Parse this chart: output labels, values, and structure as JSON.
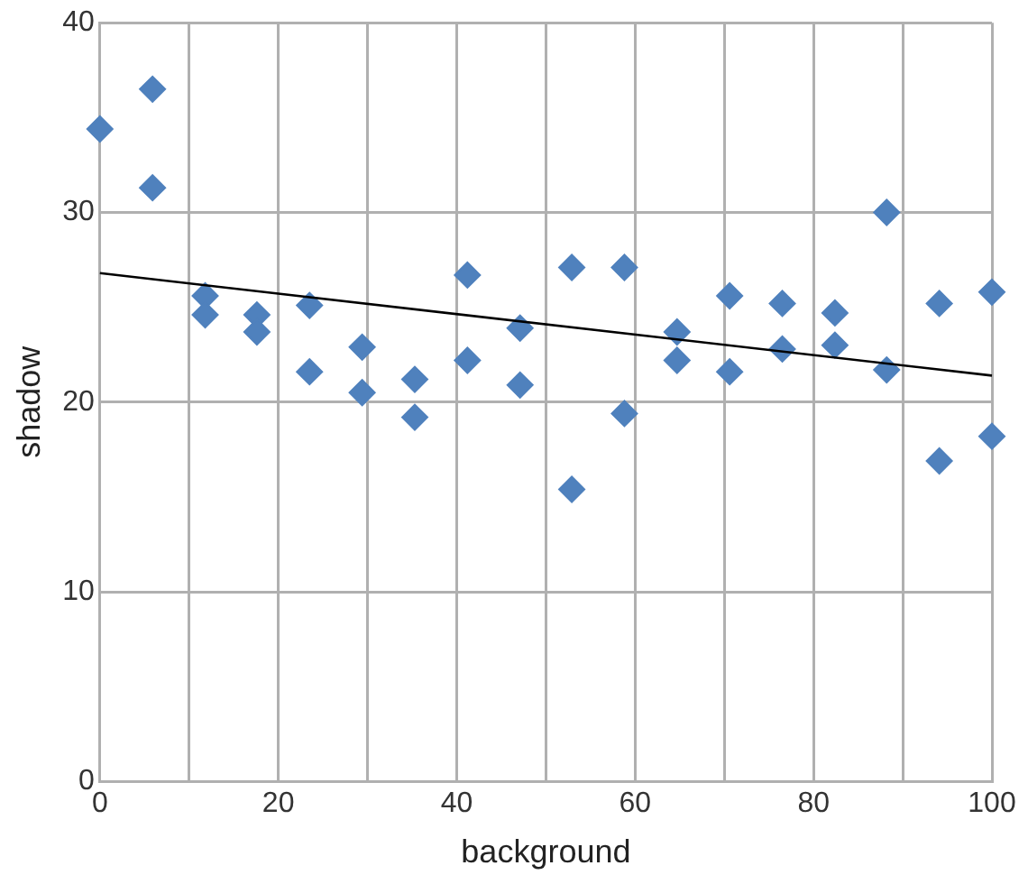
{
  "chart_data": {
    "type": "scatter",
    "xlabel": "background",
    "ylabel": "shadow",
    "xlim": [
      0,
      100
    ],
    "xticks": [
      0,
      {
        "value": 10,
        "label": null
      },
      20,
      {
        "value": 30,
        "label": null
      },
      40,
      {
        "value": 50,
        "label": null
      },
      60,
      {
        "value": 70,
        "label": null
      },
      80,
      {
        "value": 90,
        "label": null
      },
      100
    ],
    "ylim": [
      0,
      40
    ],
    "yticks": [
      0,
      10,
      20,
      30,
      40
    ],
    "grid": true,
    "marker": "diamond",
    "series": [
      {
        "color": "#4f81bd",
        "x": [
          0,
          5.9,
          5.9,
          11.8,
          11.8,
          17.6,
          17.6,
          23.5,
          23.5,
          29.4,
          29.4,
          35.3,
          35.3,
          41.2,
          41.2,
          47.1,
          47.1,
          52.9,
          52.9,
          58.8,
          58.8,
          64.7,
          64.7,
          70.6,
          70.6,
          76.5,
          76.5,
          82.4,
          82.4,
          88.2,
          88.2,
          94.1,
          94.1,
          100,
          100
        ],
        "values": [
          34.4,
          36.5,
          31.3,
          25.6,
          24.6,
          24.6,
          23.7,
          25.1,
          21.6,
          22.9,
          20.5,
          21.2,
          19.2,
          26.7,
          22.2,
          23.9,
          20.9,
          27.1,
          15.4,
          27.1,
          19.4,
          23.7,
          22.2,
          25.6,
          21.6,
          25.2,
          22.8,
          24.7,
          23.0,
          30.0,
          21.7,
          25.2,
          16.9,
          25.8,
          18.2
        ]
      },
      {
        "type": "line",
        "color": "#000000",
        "x": [
          0,
          100
        ],
        "values": [
          26.8,
          21.4
        ],
        "marker": "none"
      }
    ]
  }
}
